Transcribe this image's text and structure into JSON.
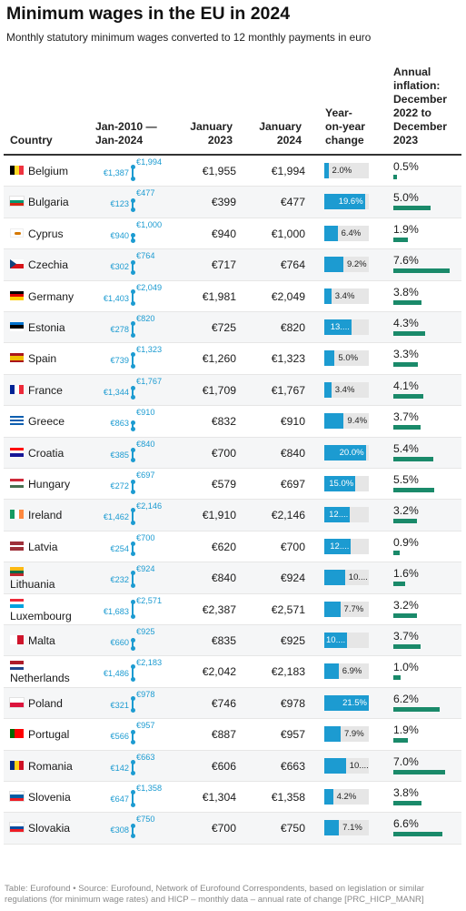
{
  "title": "Minimum wages in the EU in 2024",
  "subtitle": "Monthly statutory minimum wages converted to 12 monthly payments in euro",
  "headers": {
    "country": "Country",
    "range_l1": "Jan-2010 —",
    "range_l2": "Jan-2024",
    "jan2023_l1": "January",
    "jan2023_l2": "2023",
    "jan2024_l1": "January",
    "jan2024_l2": "2024",
    "yoy_l1": "Year-",
    "yoy_l2": "on-year",
    "yoy_l3": "change",
    "infl_l1": "Annual",
    "infl_l2": "inflation:",
    "infl_l3": "December",
    "infl_l4": "2022 to",
    "infl_l5": "December",
    "infl_l6": "2023"
  },
  "chart_data": {
    "type": "table",
    "title": "Minimum wages in the EU in 2024",
    "yoy_scale_max": 21.5,
    "inflation_scale_max": 7.6,
    "rows": [
      {
        "country": "Belgium",
        "flag": [
          "#000000",
          "#fdda24",
          "#ef3340"
        ],
        "flag_dir": "v",
        "wage_2010": 1387,
        "wage_2024_max": 1994,
        "low_label": "€1,387",
        "high_label": "€1,994",
        "jan2023": "€1,955",
        "jan2024": "€1,994",
        "yoy": 2.0,
        "yoy_label": "2.0%",
        "inflation": 0.5,
        "inflation_label": "0.5%"
      },
      {
        "country": "Bulgaria",
        "flag": [
          "#ffffff",
          "#00966e",
          "#d62612"
        ],
        "flag_dir": "h",
        "wage_2010": 123,
        "wage_2024_max": 477,
        "low_label": "€123",
        "high_label": "€477",
        "jan2023": "€399",
        "jan2024": "€477",
        "yoy": 19.6,
        "yoy_label": "19.6%",
        "inflation": 5.0,
        "inflation_label": "5.0%"
      },
      {
        "country": "Cyprus",
        "flag": [
          "#ffffff"
        ],
        "flag_dir": "cy",
        "wage_2010": 940,
        "wage_2024_max": 1000,
        "low_label": "€940",
        "high_label": "€1,000",
        "jan2023": "€940",
        "jan2024": "€1,000",
        "yoy": 6.4,
        "yoy_label": "6.4%",
        "inflation": 1.9,
        "inflation_label": "1.9%"
      },
      {
        "country": "Czechia",
        "flag": [
          "#ffffff",
          "#d7141a"
        ],
        "flag_dir": "cz",
        "wage_2010": 302,
        "wage_2024_max": 764,
        "low_label": "€302",
        "high_label": "€764",
        "jan2023": "€717",
        "jan2024": "€764",
        "yoy": 9.2,
        "yoy_label": "9.2%",
        "inflation": 7.6,
        "inflation_label": "7.6%"
      },
      {
        "country": "Germany",
        "flag": [
          "#000000",
          "#dd0000",
          "#ffce00"
        ],
        "flag_dir": "h",
        "wage_2010": 1403,
        "wage_2024_max": 2049,
        "low_label": "€1,403",
        "high_label": "€2,049",
        "jan2023": "€1,981",
        "jan2024": "€2,049",
        "yoy": 3.4,
        "yoy_label": "3.4%",
        "inflation": 3.8,
        "inflation_label": "3.8%"
      },
      {
        "country": "Estonia",
        "flag": [
          "#0072ce",
          "#000000",
          "#ffffff"
        ],
        "flag_dir": "h",
        "wage_2010": 278,
        "wage_2024_max": 820,
        "low_label": "€278",
        "high_label": "€820",
        "jan2023": "€725",
        "jan2024": "€820",
        "yoy": 13.1,
        "yoy_label": "13....",
        "inflation": 4.3,
        "inflation_label": "4.3%"
      },
      {
        "country": "Spain",
        "flag": [
          "#aa151b",
          "#f1bf00",
          "#f1bf00",
          "#aa151b"
        ],
        "flag_dir": "h",
        "wage_2010": 739,
        "wage_2024_max": 1323,
        "low_label": "€739",
        "high_label": "€1,323",
        "jan2023": "€1,260",
        "jan2024": "€1,323",
        "yoy": 5.0,
        "yoy_label": "5.0%",
        "inflation": 3.3,
        "inflation_label": "3.3%"
      },
      {
        "country": "France",
        "flag": [
          "#002395",
          "#ffffff",
          "#ed2939"
        ],
        "flag_dir": "v",
        "wage_2010": 1344,
        "wage_2024_max": 1767,
        "low_label": "€1,344",
        "high_label": "€1,767",
        "jan2023": "€1,709",
        "jan2024": "€1,767",
        "yoy": 3.4,
        "yoy_label": "3.4%",
        "inflation": 4.1,
        "inflation_label": "4.1%"
      },
      {
        "country": "Greece",
        "flag": [
          "#0d5eaf",
          "#ffffff",
          "#0d5eaf",
          "#ffffff",
          "#0d5eaf"
        ],
        "flag_dir": "h",
        "wage_2010": 863,
        "wage_2024_max": 910,
        "low_label": "€863",
        "high_label": "€910",
        "jan2023": "€832",
        "jan2024": "€910",
        "yoy": 9.4,
        "yoy_label": "9.4%",
        "inflation": 3.7,
        "inflation_label": "3.7%"
      },
      {
        "country": "Croatia",
        "flag": [
          "#ff0000",
          "#ffffff",
          "#171796"
        ],
        "flag_dir": "h",
        "wage_2010": 385,
        "wage_2024_max": 840,
        "low_label": "€385",
        "high_label": "€840",
        "jan2023": "€700",
        "jan2024": "€840",
        "yoy": 20.0,
        "yoy_label": "20.0%",
        "inflation": 5.4,
        "inflation_label": "5.4%"
      },
      {
        "country": "Hungary",
        "flag": [
          "#ce2939",
          "#ffffff",
          "#477050"
        ],
        "flag_dir": "h",
        "wage_2010": 272,
        "wage_2024_max": 697,
        "low_label": "€272",
        "high_label": "€697",
        "jan2023": "€579",
        "jan2024": "€697",
        "yoy": 15.0,
        "yoy_label": "15.0%",
        "inflation": 5.5,
        "inflation_label": "5.5%"
      },
      {
        "country": "Ireland",
        "flag": [
          "#169b62",
          "#ffffff",
          "#ff883e"
        ],
        "flag_dir": "v",
        "wage_2010": 1462,
        "wage_2024_max": 2146,
        "low_label": "€1,462",
        "high_label": "€2,146",
        "jan2023": "€1,910",
        "jan2024": "€2,146",
        "yoy": 12.4,
        "yoy_label": "12....",
        "inflation": 3.2,
        "inflation_label": "3.2%"
      },
      {
        "country": "Latvia",
        "flag": [
          "#9e3039",
          "#9e3039",
          "#ffffff",
          "#9e3039",
          "#9e3039"
        ],
        "flag_dir": "h",
        "wage_2010": 254,
        "wage_2024_max": 700,
        "low_label": "€254",
        "high_label": "€700",
        "jan2023": "€620",
        "jan2024": "€700",
        "yoy": 12.9,
        "yoy_label": "12....",
        "inflation": 0.9,
        "inflation_label": "0.9%"
      },
      {
        "country": "Lithuania",
        "flag": [
          "#fdb913",
          "#006a44",
          "#c1272d"
        ],
        "flag_dir": "h",
        "wage_2010": 232,
        "wage_2024_max": 924,
        "low_label": "€232",
        "high_label": "€924",
        "jan2023": "€840",
        "jan2024": "€924",
        "yoy": 10.0,
        "yoy_label": "10....",
        "inflation": 1.6,
        "inflation_label": "1.6%"
      },
      {
        "country": "Luxembourg",
        "flag": [
          "#ed2939",
          "#ffffff",
          "#00a1de"
        ],
        "flag_dir": "h",
        "wage_2010": 1683,
        "wage_2024_max": 2571,
        "low_label": "€1,683",
        "high_label": "€2,571",
        "jan2023": "€2,387",
        "jan2024": "€2,571",
        "yoy": 7.7,
        "yoy_label": "7.7%",
        "inflation": 3.2,
        "inflation_label": "3.2%"
      },
      {
        "country": "Malta",
        "flag": [
          "#ffffff",
          "#cf142b"
        ],
        "flag_dir": "v",
        "wage_2010": 660,
        "wage_2024_max": 925,
        "low_label": "€660",
        "high_label": "€925",
        "jan2023": "€835",
        "jan2024": "€925",
        "yoy": 10.8,
        "yoy_label": "10....",
        "inflation": 3.7,
        "inflation_label": "3.7%"
      },
      {
        "country": "Netherlands",
        "flag": [
          "#ae1c28",
          "#ffffff",
          "#21468b"
        ],
        "flag_dir": "h",
        "wage_2010": 1486,
        "wage_2024_max": 2183,
        "low_label": "€1,486",
        "high_label": "€2,183",
        "jan2023": "€2,042",
        "jan2024": "€2,183",
        "yoy": 6.9,
        "yoy_label": "6.9%",
        "inflation": 1.0,
        "inflation_label": "1.0%"
      },
      {
        "country": "Poland",
        "flag": [
          "#ffffff",
          "#dc143c"
        ],
        "flag_dir": "h",
        "wage_2010": 321,
        "wage_2024_max": 978,
        "low_label": "€321",
        "high_label": "€978",
        "jan2023": "€746",
        "jan2024": "€978",
        "yoy": 21.5,
        "yoy_label": "21.5%",
        "inflation": 6.2,
        "inflation_label": "6.2%"
      },
      {
        "country": "Portugal",
        "flag": [
          "#006600",
          "#ff0000",
          "#ff0000"
        ],
        "flag_dir": "v",
        "wage_2010": 566,
        "wage_2024_max": 957,
        "low_label": "€566",
        "high_label": "€957",
        "jan2023": "€887",
        "jan2024": "€957",
        "yoy": 7.9,
        "yoy_label": "7.9%",
        "inflation": 1.9,
        "inflation_label": "1.9%"
      },
      {
        "country": "Romania",
        "flag": [
          "#002b7f",
          "#fcd116",
          "#ce1126"
        ],
        "flag_dir": "v",
        "wage_2010": 142,
        "wage_2024_max": 663,
        "low_label": "€142",
        "high_label": "€663",
        "jan2023": "€606",
        "jan2024": "€663",
        "yoy": 10.4,
        "yoy_label": "10....",
        "inflation": 7.0,
        "inflation_label": "7.0%"
      },
      {
        "country": "Slovenia",
        "flag": [
          "#ffffff",
          "#005da4",
          "#ed1c24"
        ],
        "flag_dir": "h",
        "wage_2010": 647,
        "wage_2024_max": 1358,
        "low_label": "€647",
        "high_label": "€1,358",
        "jan2023": "€1,304",
        "jan2024": "€1,358",
        "yoy": 4.2,
        "yoy_label": "4.2%",
        "inflation": 3.8,
        "inflation_label": "3.8%"
      },
      {
        "country": "Slovakia",
        "flag": [
          "#ffffff",
          "#0b4ea2",
          "#ee1c25"
        ],
        "flag_dir": "h",
        "wage_2010": 308,
        "wage_2024_max": 750,
        "low_label": "€308",
        "high_label": "€750",
        "jan2023": "€700",
        "jan2024": "€750",
        "yoy": 7.1,
        "yoy_label": "7.1%",
        "inflation": 6.6,
        "inflation_label": "6.6%"
      }
    ]
  },
  "footer": "Table: Eurofound • Source: Eurofound, Network of Eurofound Correspondents, based on legislation or similar regulations (for minimum wage rates) and HICP – monthly data – annual rate of change [PRC_HICP_MANR]"
}
